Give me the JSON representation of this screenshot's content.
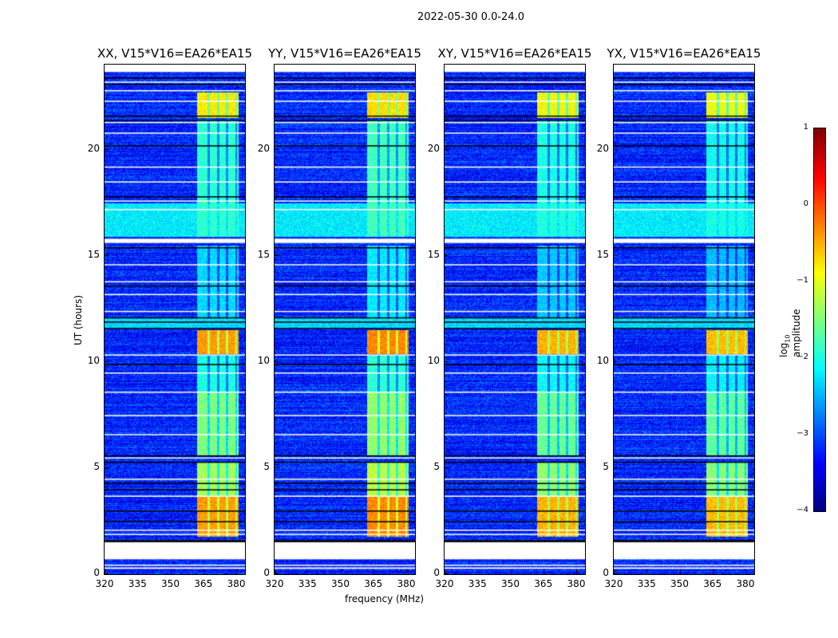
{
  "chart_data": {
    "type": "heatmap",
    "title": "2022-05-30 0.0-24.0",
    "xlabel": "frequency (MHz)",
    "ylabel": "UT (hours)",
    "xlim": [
      320,
      384
    ],
    "ylim": [
      0,
      24
    ],
    "xticks": [
      320,
      335,
      350,
      365,
      380
    ],
    "yticks": [
      0,
      5,
      10,
      15,
      20
    ],
    "panels": [
      {
        "title": "XX, V15*V16=EA26*EA15",
        "burst_gain": 0.0
      },
      {
        "title": "YY, V15*V16=EA26*EA15",
        "burst_gain": 0.1
      },
      {
        "title": "XY, V15*V16=EA26*EA15",
        "burst_gain": -0.1
      },
      {
        "title": "YX, V15*V16=EA26*EA15",
        "burst_gain": -0.15
      }
    ],
    "baseline_log_amp": -3.2,
    "band_mhz": [
      362,
      381
    ],
    "band_gaps_mhz": [
      367.3,
      371.6,
      375.6,
      379.8
    ],
    "flagged_white_hours": [
      [
        0.7,
        1.6
      ],
      [
        0.25,
        0.32
      ],
      [
        15.6,
        15.8
      ],
      [
        23.65,
        24.0
      ]
    ],
    "flag_lines_white_hours": [
      0.45,
      1.9,
      2.1,
      3.7,
      4.5,
      5.5,
      6.6,
      7.5,
      8.6,
      9.5,
      10.35,
      12.4,
      13.2,
      13.8,
      14.6,
      17.2,
      17.6,
      18.5,
      19.2,
      20.8,
      21.3,
      22.3,
      22.8,
      23.2
    ],
    "flag_lines_black_hours": [
      1.6,
      2.5,
      3.0,
      4.0,
      4.3,
      5.3,
      5.6,
      9.9,
      11.6,
      11.9,
      12.1,
      13.6,
      15.4,
      17.8,
      20.2,
      21.4,
      21.6,
      23.1,
      23.4
    ],
    "bursts": [
      {
        "hours": [
          1.8,
          3.7
        ],
        "log_amp": -0.4
      },
      {
        "hours": [
          3.7,
          5.3
        ],
        "log_amp": -1.3
      },
      {
        "hours": [
          5.6,
          8.6
        ],
        "log_amp": -1.5
      },
      {
        "hours": [
          8.6,
          10.3
        ],
        "log_amp": -2.0
      },
      {
        "hours": [
          10.4,
          11.5
        ],
        "log_amp": -0.4
      },
      {
        "hours": [
          12.0,
          15.5
        ],
        "log_amp": -2.3
      },
      {
        "hours": [
          15.9,
          21.4
        ],
        "log_amp": -1.9
      },
      {
        "hours": [
          21.5,
          22.7
        ],
        "log_amp": -0.8
      }
    ],
    "broadband": [
      {
        "hours": [
          15.9,
          17.5
        ],
        "log_amp": -2.2
      },
      {
        "hours": [
          11.6,
          12.1
        ],
        "log_amp": -2.3
      }
    ],
    "colorbar": {
      "label": "log",
      "label_sub": "10",
      "label_rest": " amplitude",
      "ticks": [
        "1",
        "0",
        "−1",
        "−2",
        "−3",
        "−4"
      ],
      "range": [
        -4,
        1
      ],
      "colormap": "jet"
    }
  }
}
